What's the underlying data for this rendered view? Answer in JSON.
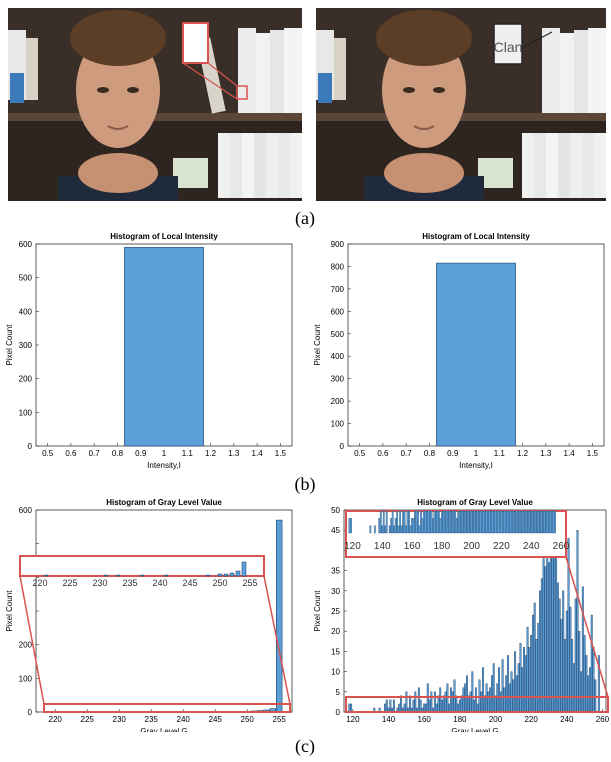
{
  "captions": {
    "a": "(a)",
    "b": "(b)",
    "c": "(c)"
  },
  "photos": {
    "left": {
      "zoom_text": ""
    },
    "right": {
      "zoom_text": "Clan"
    }
  },
  "colors": {
    "bar_fill": "#5a9fd8",
    "bar_stroke": "#1f3f66",
    "highlight": "#d9534f",
    "axis": "#333333"
  },
  "chart_data": [
    {
      "id": "b-left",
      "type": "bar",
      "title": "Histogram of Local Intensity",
      "xlabel": "Intensity,I",
      "ylabel": "Pixel Count",
      "xlim": [
        0.45,
        1.55
      ],
      "ylim": [
        0,
        600
      ],
      "xticks": [
        0.5,
        0.6,
        0.7,
        0.8,
        0.9,
        1,
        1.1,
        1.2,
        1.3,
        1.4,
        1.5
      ],
      "xtick_labels": [
        "0.5",
        "0.6",
        "0.7",
        "0.8",
        "0.9",
        "1",
        "1.1",
        "1.2",
        "1.3",
        "1.4",
        "1.5"
      ],
      "yticks": [
        0,
        100,
        200,
        300,
        400,
        500,
        600
      ],
      "bars": [
        {
          "x0": 0.83,
          "x1": 1.17,
          "value": 590
        }
      ]
    },
    {
      "id": "b-right",
      "type": "bar",
      "title": "Histogram of Local Intensity",
      "xlabel": "Intensity,I",
      "ylabel": "Pixel Count",
      "xlim": [
        0.45,
        1.55
      ],
      "ylim": [
        0,
        900
      ],
      "xticks": [
        0.5,
        0.6,
        0.7,
        0.8,
        0.9,
        1,
        1.1,
        1.2,
        1.3,
        1.4,
        1.5
      ],
      "xtick_labels": [
        "0.5",
        "0.6",
        "0.7",
        "0.8",
        "0.9",
        "1",
        "1.1",
        "1.2",
        "1.3",
        "1.4",
        "1.5"
      ],
      "yticks": [
        0,
        100,
        200,
        300,
        400,
        500,
        600,
        700,
        800,
        900
      ],
      "bars": [
        {
          "x0": 0.83,
          "x1": 1.17,
          "value": 815
        }
      ]
    },
    {
      "id": "c-left",
      "type": "bar",
      "title": "Histogram of Gray Level Value",
      "xlabel": "Gray Level,G",
      "ylabel": "Pixel Count",
      "xlim": [
        217,
        257
      ],
      "ylim": [
        0,
        600
      ],
      "xticks": [
        220,
        225,
        230,
        235,
        240,
        245,
        250,
        255
      ],
      "yticks": [
        0,
        100,
        200,
        300,
        400,
        500,
        600
      ],
      "ytick_labels": [
        "0",
        "100",
        "200",
        "",
        "",
        "",
        "600"
      ],
      "bars": [
        {
          "x": 250,
          "value": 2
        },
        {
          "x": 251,
          "value": 3
        },
        {
          "x": 252,
          "value": 4
        },
        {
          "x": 253,
          "value": 6
        },
        {
          "x": 254,
          "value": 10
        },
        {
          "x": 255,
          "value": 570
        }
      ],
      "inset": {
        "xticks": [
          220,
          225,
          230,
          235,
          240,
          245,
          250,
          255
        ],
        "ylim": [
          0,
          20
        ],
        "bars": [
          {
            "x": 221,
            "value": 1
          },
          {
            "x": 231,
            "value": 1
          },
          {
            "x": 233,
            "value": 1
          },
          {
            "x": 237,
            "value": 1
          },
          {
            "x": 241,
            "value": 1
          },
          {
            "x": 248,
            "value": 1
          },
          {
            "x": 250,
            "value": 2
          },
          {
            "x": 251,
            "value": 2
          },
          {
            "x": 252,
            "value": 3
          },
          {
            "x": 253,
            "value": 5
          },
          {
            "x": 254,
            "value": 14
          }
        ]
      }
    },
    {
      "id": "c-right",
      "type": "bar",
      "title": "Histogram of Gray Level Value",
      "xlabel": "Gray Level,G",
      "ylabel": "Pixel Count",
      "xlim": [
        115,
        262
      ],
      "ylim": [
        0,
        50
      ],
      "xticks": [
        120,
        140,
        160,
        180,
        200,
        220,
        240,
        260
      ],
      "yticks": [
        0,
        5,
        10,
        15,
        20,
        25,
        30,
        35,
        40,
        45,
        50
      ],
      "ytick_labels": [
        "0",
        "5",
        "10",
        "15",
        "20",
        "25",
        "30",
        "35",
        "",
        "45",
        "50"
      ],
      "bars_note": "count per gray level",
      "values_start": 118,
      "values": [
        2,
        2,
        0,
        0,
        0,
        0,
        0,
        0,
        0,
        0,
        0,
        0,
        0,
        0,
        1,
        0,
        0,
        1,
        0,
        0,
        2,
        3,
        1,
        3,
        1,
        3,
        0,
        1,
        2,
        4,
        1,
        2,
        5,
        1,
        4,
        1,
        3,
        5,
        1,
        6,
        3,
        1,
        2,
        2,
        7,
        3,
        5,
        1,
        5,
        2,
        4,
        6,
        3,
        4,
        5,
        7,
        2,
        6,
        5,
        8,
        4,
        2,
        3,
        4,
        6,
        7,
        9,
        4,
        5,
        10,
        3,
        6,
        2,
        8,
        5,
        11,
        4,
        7,
        5,
        6,
        9,
        12,
        4,
        7,
        11,
        5,
        13,
        6,
        9,
        14,
        7,
        10,
        8,
        15,
        9,
        12,
        17,
        11,
        16,
        14,
        21,
        16,
        19,
        24,
        27,
        18,
        22,
        30,
        33,
        38,
        36,
        42,
        37,
        46,
        41,
        38,
        48,
        32,
        28,
        23,
        30,
        18,
        25,
        43,
        26,
        18,
        12,
        28,
        45,
        20,
        10,
        31,
        19,
        14,
        9,
        11,
        24,
        16,
        8,
        0,
        14
      ],
      "inset": {
        "xticks": [
          120,
          140,
          160,
          180,
          200,
          220,
          240,
          260
        ],
        "xrange": [
          117,
          262
        ]
      }
    }
  ]
}
